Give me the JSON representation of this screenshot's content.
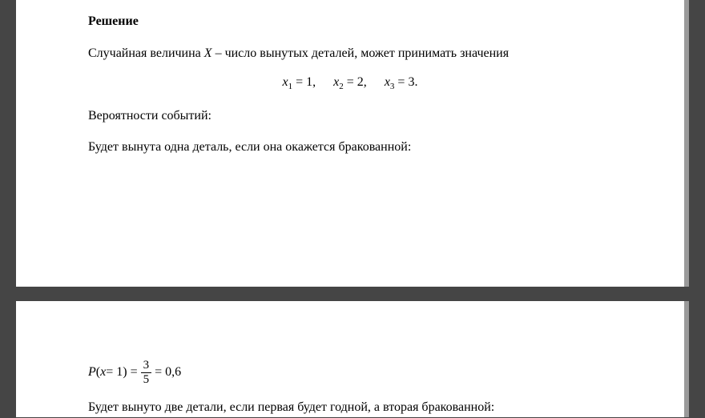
{
  "page1": {
    "heading": "Решение",
    "para1_prefix": "Случайная величина ",
    "para1_var": "X",
    "para1_suffix": " – число вынутых деталей, может принимать значения",
    "equation_line": {
      "x1": "x",
      "sub1": "1",
      "eq1": " = 1,",
      "x2": "x",
      "sub2": "2",
      "eq2": " = 2,",
      "x3": "x",
      "sub3": "3",
      "eq3": " = 3."
    },
    "para2": "Вероятности событий:",
    "para3": "Будет вынута одна деталь, если она окажется бракованной:"
  },
  "page2": {
    "equation": {
      "P": "P",
      "open": "(",
      "x": "x",
      "eq1": " = 1) = ",
      "num": "3",
      "den": "5",
      "eq2": " = 0,6"
    },
    "para1": "Будет вынуто две детали, если первая будет годной, а вторая бракованной:"
  },
  "colors": {
    "background": "#454545",
    "page": "#ffffff",
    "text": "#000000",
    "shadow": "#9a9a9a"
  }
}
